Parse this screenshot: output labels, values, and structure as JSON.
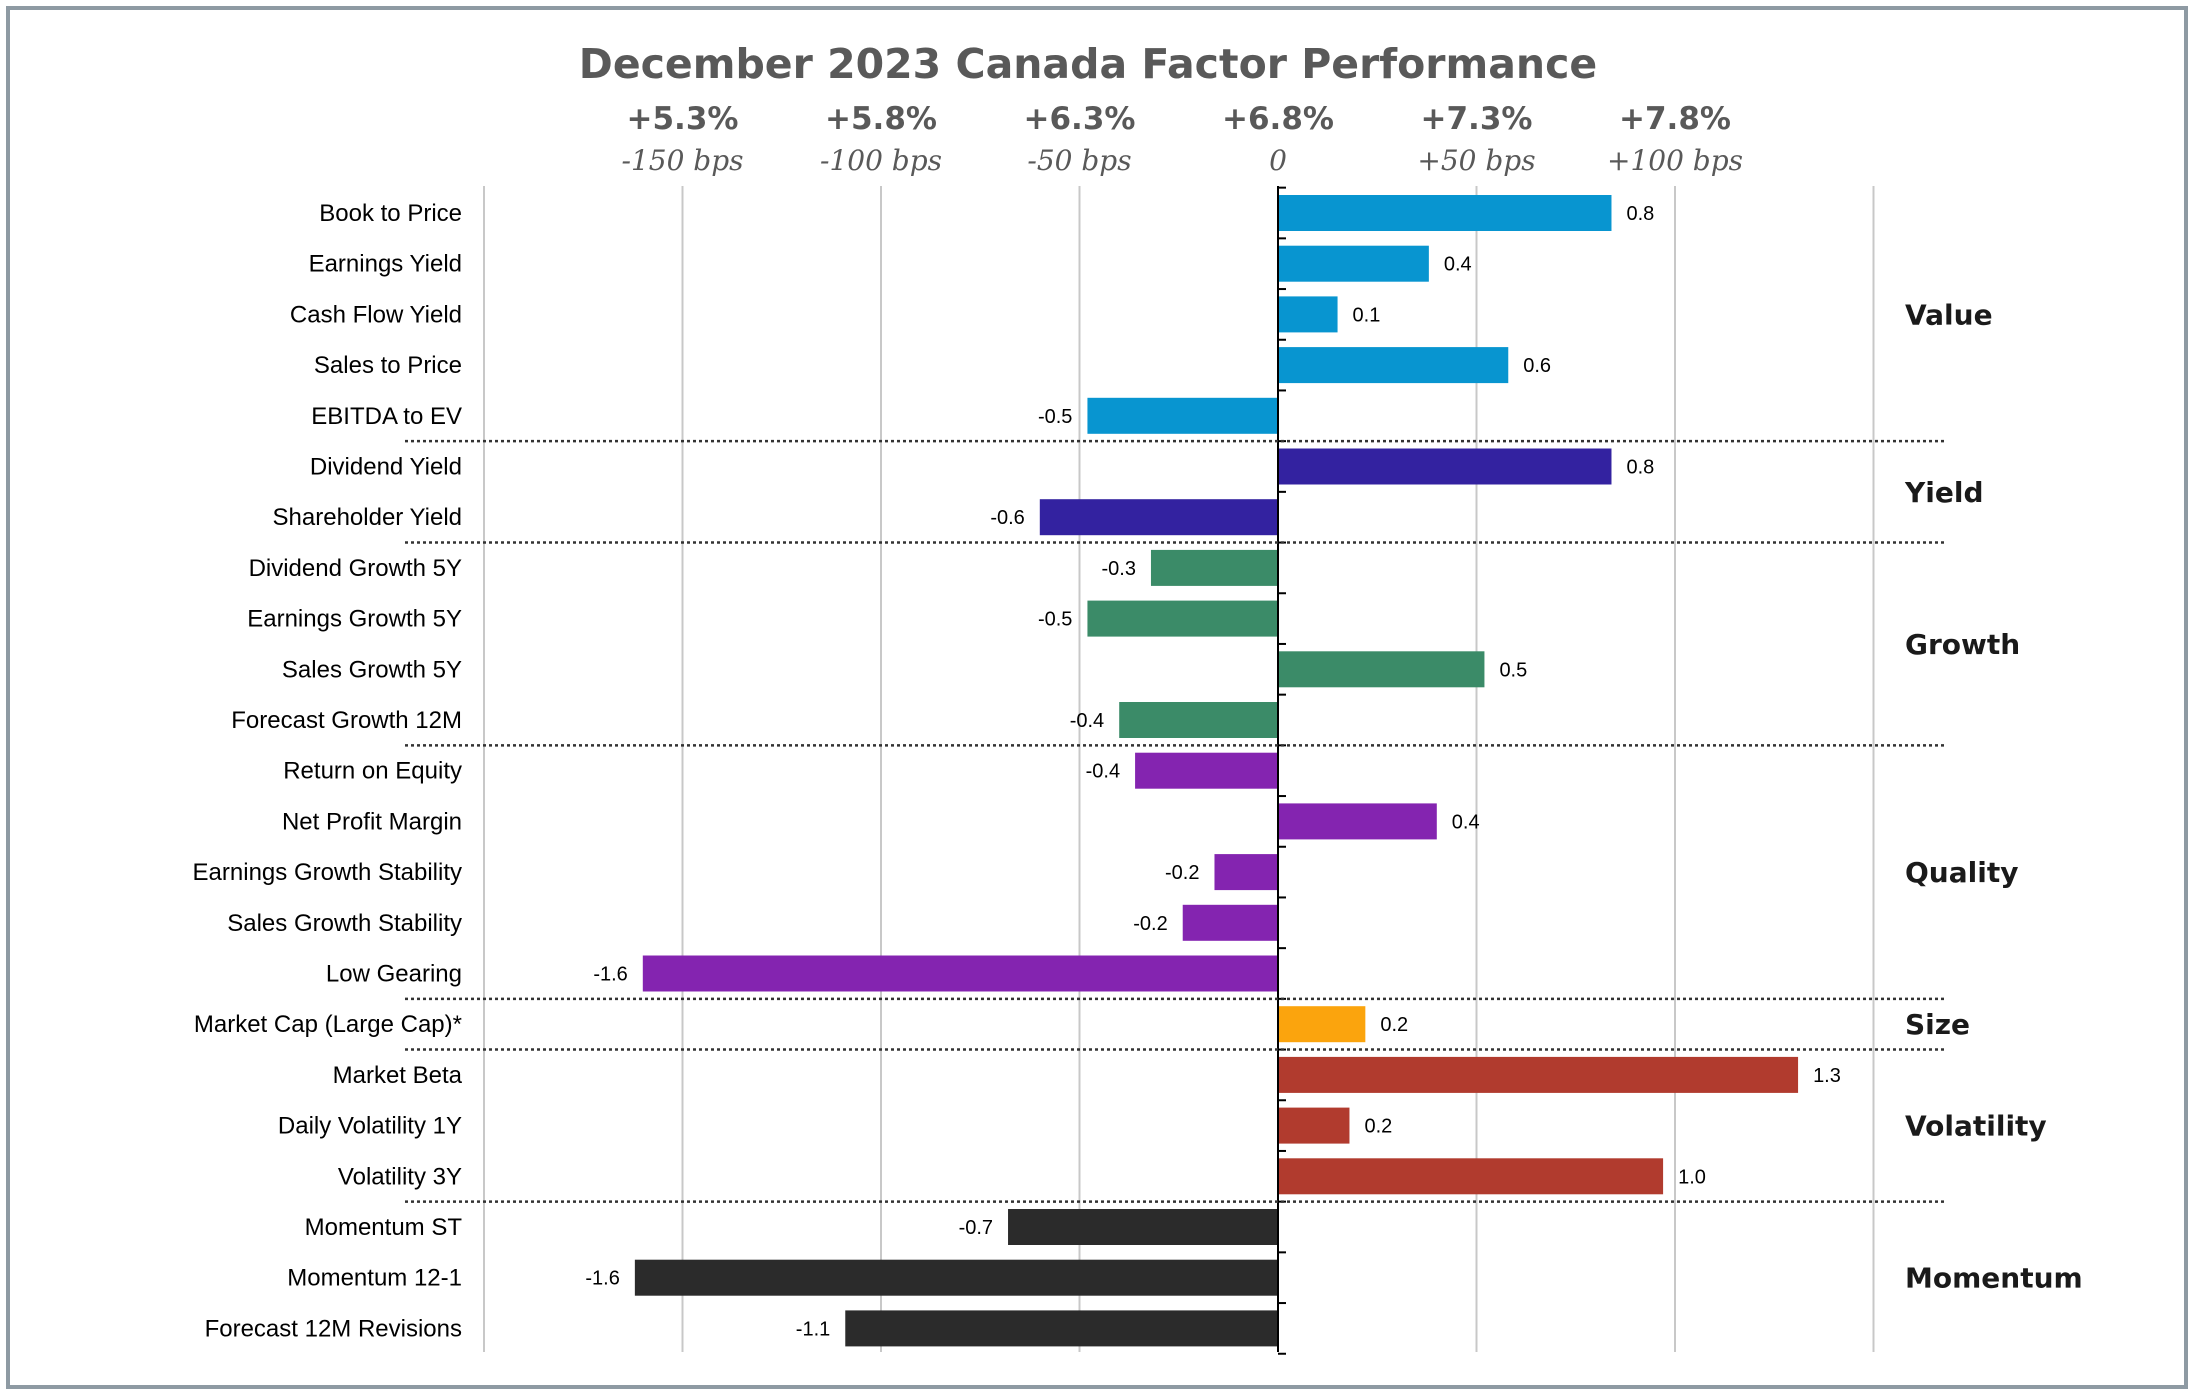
{
  "chart_data": {
    "type": "bar",
    "orientation": "horizontal",
    "title": "December 2023 Canada Factor Performance",
    "x_axis": {
      "ticks": [
        {
          "bps": -150,
          "return_label": "+5.3%",
          "bps_label": "-150 bps"
        },
        {
          "bps": -100,
          "return_label": "+5.8%",
          "bps_label": "-100 bps"
        },
        {
          "bps": -50,
          "return_label": "+6.3%",
          "bps_label": "-50 bps"
        },
        {
          "bps": 0,
          "return_label": "+6.8%",
          "bps_label": "0"
        },
        {
          "bps": 50,
          "return_label": "+7.3%",
          "bps_label": "+50 bps"
        },
        {
          "bps": 100,
          "return_label": "+7.8%",
          "bps_label": "+100 bps"
        }
      ],
      "xlim": [
        -200,
        150
      ],
      "grid": true,
      "gridlines": [
        -200,
        -150,
        -100,
        -50,
        0,
        50,
        100,
        150
      ]
    },
    "categories": [
      "Book to Price",
      "Earnings Yield",
      "Cash Flow Yield",
      "Sales to Price",
      "EBITDA to EV",
      "Dividend Yield",
      "Shareholder Yield",
      "Dividend Growth 5Y",
      "Earnings Growth 5Y",
      "Sales Growth 5Y",
      "Forecast Growth 12M",
      "Return on Equity",
      "Net Profit Margin",
      "Earnings Growth Stability",
      "Sales Growth Stability",
      "Low Gearing",
      "Market Cap (Large Cap)*",
      "Market Beta",
      "Daily Volatility 1Y",
      "Volatility 3Y",
      "Momentum ST",
      "Momentum 12-1",
      "Forecast 12M Revisions"
    ],
    "values": [
      0.8,
      0.4,
      0.1,
      0.6,
      -0.5,
      0.8,
      -0.6,
      -0.3,
      -0.5,
      0.5,
      -0.4,
      -0.4,
      0.4,
      -0.2,
      -0.2,
      -1.6,
      0.2,
      1.3,
      0.2,
      1.0,
      -0.7,
      -1.6,
      -1.1
    ],
    "value_labels": [
      "0.8",
      "0.4",
      "0.1",
      "0.6",
      "-0.5",
      "0.8",
      "-0.6",
      "-0.3",
      "-0.5",
      "0.5",
      "-0.4",
      "-0.4",
      "0.4",
      "-0.2",
      "-0.2",
      "-1.6",
      "0.2",
      "1.3",
      "0.2",
      "1.0",
      "-0.7",
      "-1.6",
      "-1.1"
    ],
    "bar_bps": [
      84,
      38,
      15,
      58,
      -48,
      84,
      -60,
      -32,
      -48,
      52,
      -40,
      -36,
      40,
      -16,
      -24,
      -160,
      22,
      131,
      18,
      97,
      -68,
      -162,
      -109
    ],
    "groups": [
      {
        "name": "Value",
        "start": 0,
        "end": 4,
        "color": "#0895d0"
      },
      {
        "name": "Yield",
        "start": 5,
        "end": 6,
        "color": "#3322a0"
      },
      {
        "name": "Growth",
        "start": 7,
        "end": 10,
        "color": "#3b8b68"
      },
      {
        "name": "Quality",
        "start": 11,
        "end": 15,
        "color": "#8424b0"
      },
      {
        "name": "Size",
        "start": 16,
        "end": 16,
        "color": "#fba40d"
      },
      {
        "name": "Volatility",
        "start": 17,
        "end": 19,
        "color": "#b13b2e"
      },
      {
        "name": "Momentum",
        "start": 20,
        "end": 22,
        "color": "#2b2b2b"
      }
    ]
  }
}
